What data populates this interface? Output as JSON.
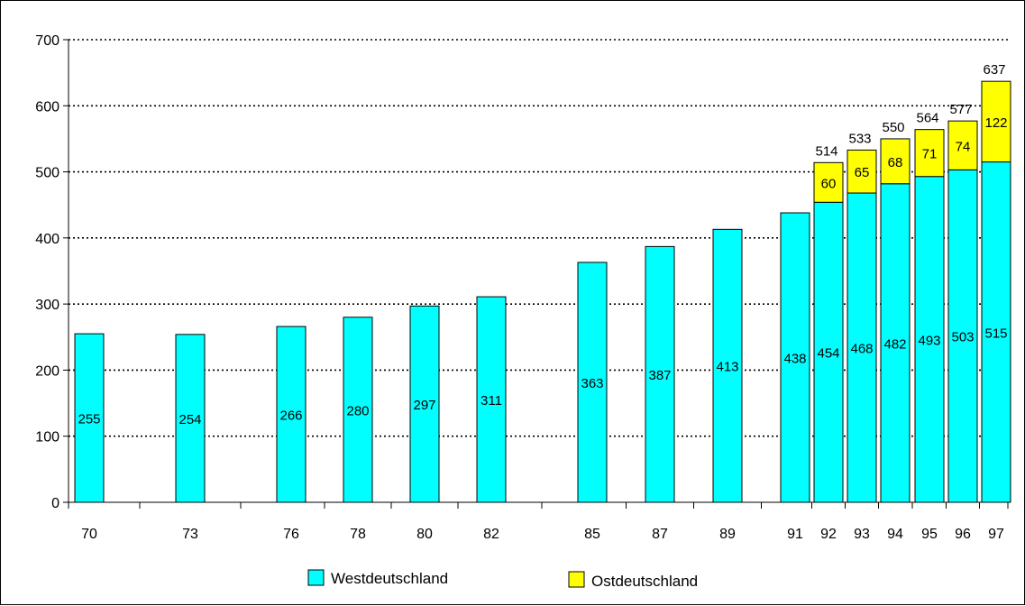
{
  "chart_data": {
    "type": "bar",
    "stacked": true,
    "categories": [
      "70",
      "73",
      "76",
      "78",
      "80",
      "82",
      "85",
      "87",
      "89",
      "91",
      "92",
      "93",
      "94",
      "95",
      "96",
      "97"
    ],
    "series": [
      {
        "name": "Westdeutschland",
        "color": "#00FFFF",
        "values": [
          255,
          254,
          266,
          280,
          297,
          311,
          363,
          387,
          413,
          438,
          454,
          468,
          482,
          493,
          503,
          515
        ]
      },
      {
        "name": "Ostdeutschland",
        "color": "#FFFF00",
        "values": [
          null,
          null,
          null,
          null,
          null,
          null,
          null,
          null,
          null,
          null,
          60,
          65,
          68,
          71,
          74,
          122
        ]
      }
    ],
    "totals": [
      null,
      null,
      null,
      null,
      null,
      null,
      null,
      null,
      null,
      null,
      "514",
      "533",
      "550",
      "564",
      "577",
      "637"
    ],
    "ylim": [
      0,
      700
    ],
    "yticks": [
      0,
      100,
      200,
      300,
      400,
      500,
      600,
      700
    ],
    "grid": true,
    "legend_position": "bottom",
    "title": "",
    "xlabel": "",
    "ylabel": ""
  }
}
